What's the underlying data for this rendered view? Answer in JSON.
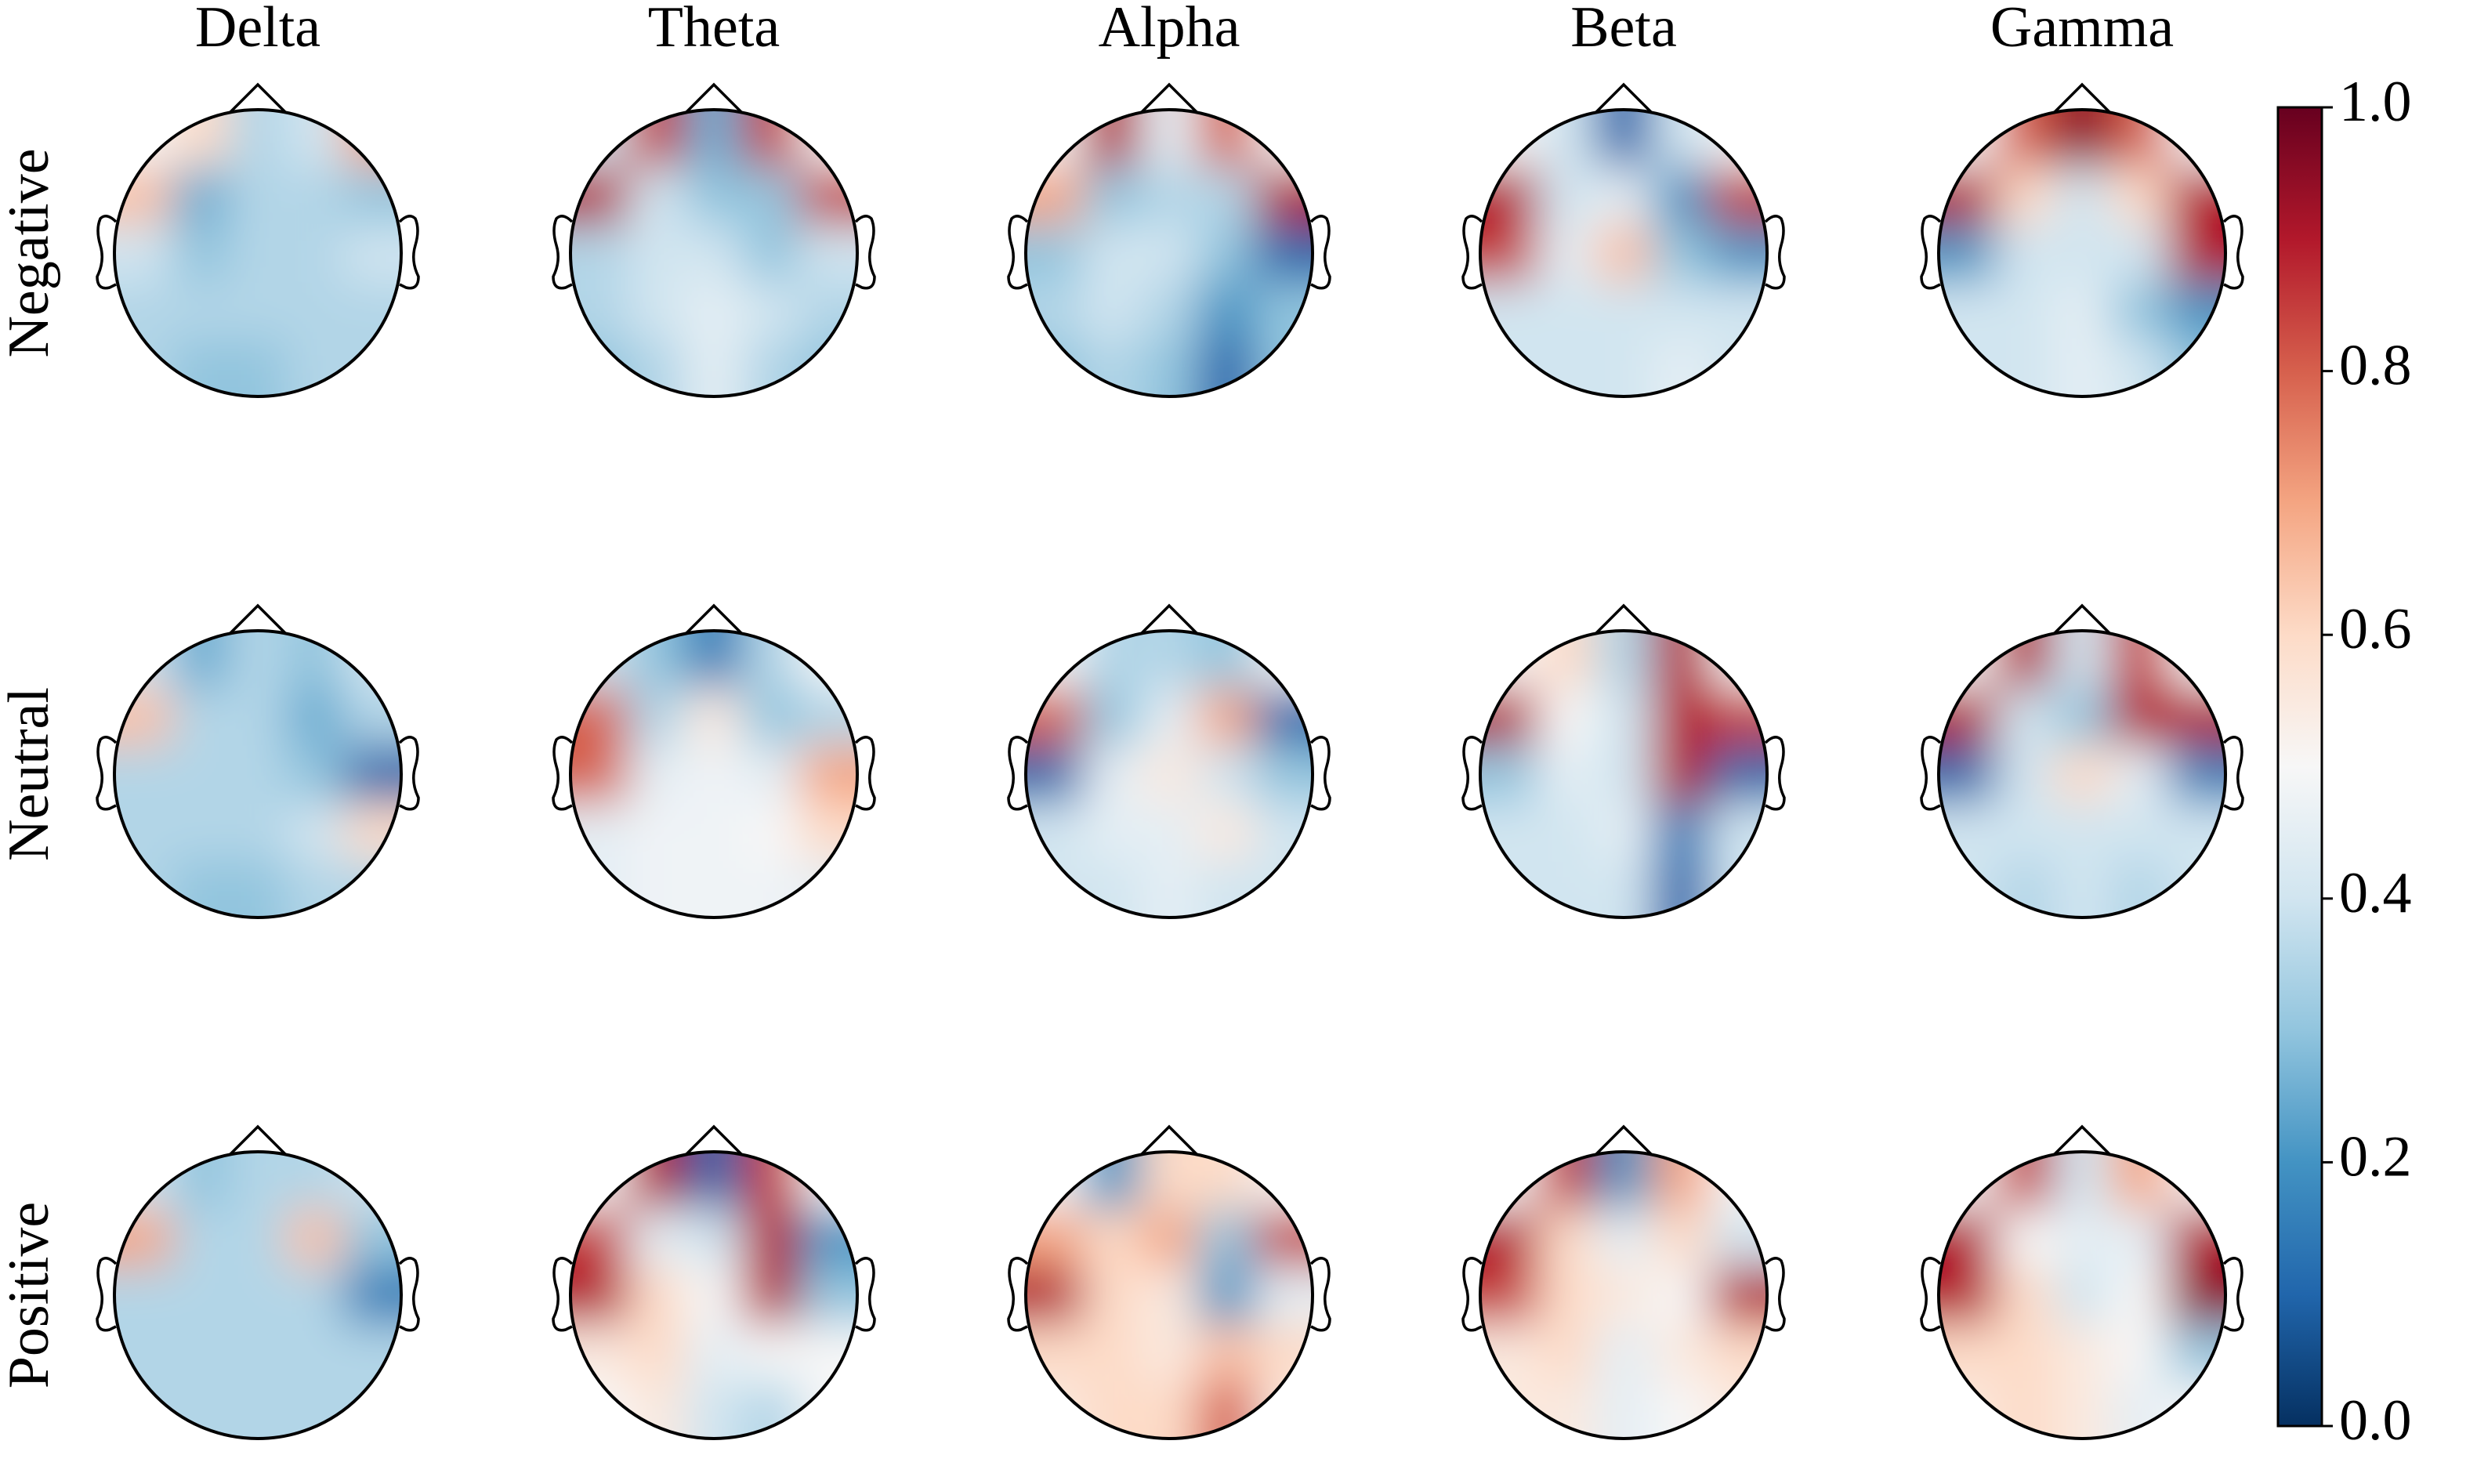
{
  "chart_data": {
    "type": "topomap",
    "columns": [
      "Delta",
      "Theta",
      "Alpha",
      "Beta",
      "Gamma"
    ],
    "rows": [
      "Negative",
      "Neutral",
      "Positive"
    ],
    "colormap": "RdBu_r",
    "clim": [
      0,
      1
    ],
    "cticks": [
      {
        "value": 0,
        "label": "0.0"
      },
      {
        "value": 0.2,
        "label": "0.2"
      },
      {
        "value": 0.4,
        "label": "0.4"
      },
      {
        "value": 0.6,
        "label": "0.6"
      },
      {
        "value": 0.8,
        "label": "0.8"
      },
      {
        "value": 1,
        "label": "1.0"
      }
    ],
    "maps": [
      [
        [
          [
            0.5,
            0.6,
            0.35,
            0.4,
            0.7
          ],
          [
            0.65,
            0.25,
            0.35,
            0.35,
            0.3
          ],
          [
            0.4,
            0.3,
            0.35,
            0.35,
            0.4
          ],
          [
            0.35,
            0.35,
            0.35,
            0.35,
            0.35
          ],
          [
            0.35,
            0.3,
            0.3,
            0.35,
            0.35
          ]
        ],
        [
          [
            0.4,
            0.85,
            0.25,
            0.85,
            0.5
          ],
          [
            0.9,
            0.4,
            0.3,
            0.3,
            0.85
          ],
          [
            0.35,
            0.4,
            0.4,
            0.3,
            0.4
          ],
          [
            0.35,
            0.4,
            0.45,
            0.4,
            0.35
          ],
          [
            0.3,
            0.35,
            0.45,
            0.35,
            0.3
          ]
        ],
        [
          [
            0.5,
            0.9,
            0.45,
            0.8,
            0.5
          ],
          [
            0.7,
            0.3,
            0.35,
            0.35,
            0.9
          ],
          [
            0.3,
            0.4,
            0.4,
            0.3,
            0.1
          ],
          [
            0.35,
            0.4,
            0.35,
            0.2,
            0.3
          ],
          [
            0.3,
            0.35,
            0.3,
            0.1,
            0.3
          ]
        ],
        [
          [
            0.5,
            0.4,
            0.1,
            0.4,
            0.5
          ],
          [
            0.9,
            0.4,
            0.45,
            0.2,
            0.85
          ],
          [
            0.85,
            0.45,
            0.65,
            0.3,
            0.2
          ],
          [
            0.4,
            0.4,
            0.4,
            0.4,
            0.4
          ],
          [
            0.4,
            0.4,
            0.4,
            0.45,
            0.4
          ]
        ],
        [
          [
            0.5,
            0.8,
            0.95,
            0.8,
            0.5
          ],
          [
            0.9,
            0.6,
            0.4,
            0.6,
            0.9
          ],
          [
            0.2,
            0.4,
            0.4,
            0.4,
            0.9
          ],
          [
            0.4,
            0.4,
            0.45,
            0.3,
            0.2
          ],
          [
            0.4,
            0.4,
            0.45,
            0.4,
            0.3
          ]
        ]
      ],
      [
        [
          [
            0.4,
            0.25,
            0.35,
            0.3,
            0.4
          ],
          [
            0.65,
            0.35,
            0.35,
            0.25,
            0.35
          ],
          [
            0.35,
            0.35,
            0.35,
            0.3,
            0.1
          ],
          [
            0.35,
            0.35,
            0.35,
            0.4,
            0.6
          ],
          [
            0.35,
            0.3,
            0.3,
            0.35,
            0.35
          ]
        ],
        [
          [
            0.4,
            0.3,
            0.15,
            0.35,
            0.5
          ],
          [
            0.8,
            0.35,
            0.55,
            0.3,
            0.35
          ],
          [
            0.8,
            0.45,
            0.48,
            0.45,
            0.7
          ],
          [
            0.45,
            0.48,
            0.48,
            0.5,
            0.6
          ],
          [
            0.45,
            0.48,
            0.48,
            0.48,
            0.45
          ]
        ],
        [
          [
            0.5,
            0.35,
            0.35,
            0.3,
            0.5
          ],
          [
            0.8,
            0.3,
            0.45,
            0.7,
            0.1
          ],
          [
            0.1,
            0.45,
            0.55,
            0.4,
            0.3
          ],
          [
            0.4,
            0.45,
            0.45,
            0.55,
            0.4
          ],
          [
            0.4,
            0.4,
            0.45,
            0.4,
            0.4
          ]
        ],
        [
          [
            0.5,
            0.6,
            0.35,
            0.9,
            0.5
          ],
          [
            0.9,
            0.5,
            0.4,
            0.9,
            0.85
          ],
          [
            0.3,
            0.45,
            0.4,
            0.9,
            0.1
          ],
          [
            0.4,
            0.4,
            0.45,
            0.15,
            0.4
          ],
          [
            0.4,
            0.4,
            0.4,
            0.1,
            0.4
          ]
        ],
        [
          [
            0.5,
            0.9,
            0.4,
            0.85,
            0.5
          ],
          [
            0.9,
            0.4,
            0.3,
            0.9,
            0.9
          ],
          [
            0.1,
            0.4,
            0.6,
            0.45,
            0.15
          ],
          [
            0.4,
            0.4,
            0.4,
            0.4,
            0.4
          ],
          [
            0.4,
            0.35,
            0.4,
            0.35,
            0.4
          ]
        ]
      ],
      [
        [
          [
            0.4,
            0.3,
            0.35,
            0.35,
            0.4
          ],
          [
            0.7,
            0.35,
            0.35,
            0.65,
            0.3
          ],
          [
            0.35,
            0.35,
            0.35,
            0.35,
            0.15
          ],
          [
            0.35,
            0.35,
            0.35,
            0.35,
            0.35
          ],
          [
            0.35,
            0.35,
            0.35,
            0.35,
            0.35
          ]
        ],
        [
          [
            0.5,
            0.9,
            0.1,
            0.85,
            0.5
          ],
          [
            0.85,
            0.45,
            0.4,
            0.9,
            0.2
          ],
          [
            0.9,
            0.6,
            0.5,
            0.9,
            0.3
          ],
          [
            0.55,
            0.6,
            0.45,
            0.5,
            0.5
          ],
          [
            0.5,
            0.55,
            0.4,
            0.35,
            0.5
          ]
        ],
        [
          [
            0.5,
            0.2,
            0.6,
            0.6,
            0.5
          ],
          [
            0.7,
            0.6,
            0.7,
            0.3,
            0.85
          ],
          [
            0.9,
            0.6,
            0.55,
            0.2,
            0.45
          ],
          [
            0.6,
            0.6,
            0.55,
            0.65,
            0.6
          ],
          [
            0.55,
            0.6,
            0.6,
            0.8,
            0.55
          ]
        ],
        [
          [
            0.5,
            0.85,
            0.2,
            0.7,
            0.5
          ],
          [
            0.9,
            0.6,
            0.45,
            0.6,
            0.4
          ],
          [
            0.85,
            0.6,
            0.55,
            0.5,
            0.9
          ],
          [
            0.55,
            0.6,
            0.45,
            0.55,
            0.6
          ],
          [
            0.55,
            0.55,
            0.45,
            0.5,
            0.55
          ]
        ],
        [
          [
            0.5,
            0.85,
            0.4,
            0.7,
            0.5
          ],
          [
            0.9,
            0.5,
            0.45,
            0.45,
            0.9
          ],
          [
            0.9,
            0.6,
            0.4,
            0.5,
            0.95
          ],
          [
            0.6,
            0.6,
            0.55,
            0.5,
            0.3
          ],
          [
            0.55,
            0.6,
            0.55,
            0.45,
            0.5
          ]
        ]
      ]
    ]
  }
}
